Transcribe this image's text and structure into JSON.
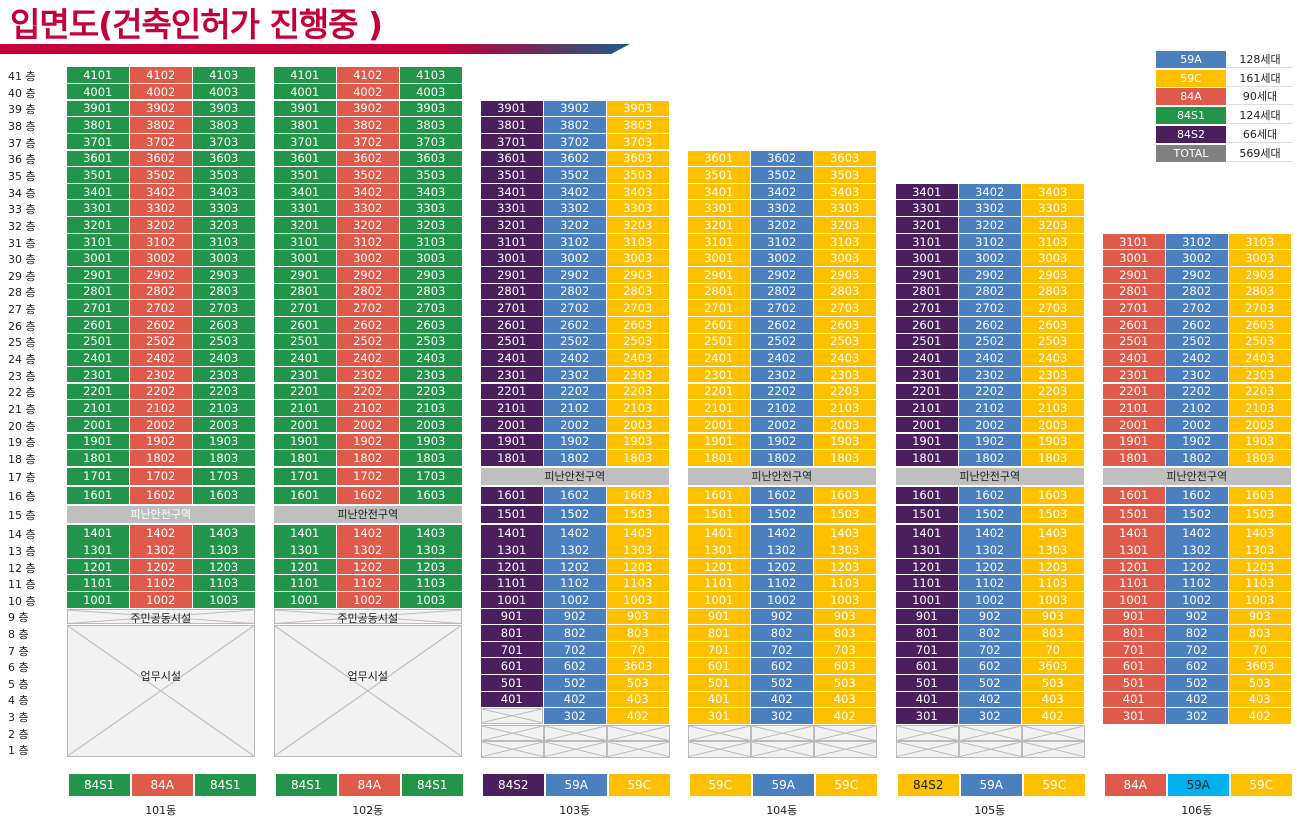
{
  "title": "입면도(건축인허가 진행중 )",
  "colors": {
    "green": "#23954a",
    "red": "#e05a4b",
    "blue": "#4a7fc0",
    "yellow": "#ffc000",
    "purple": "#4b1f5e",
    "grey": "#808080",
    "cyan": "#00b0f0"
  },
  "floor_suffix": " 층",
  "legend": [
    {
      "type": "59A",
      "count": "128세대",
      "color": "blue"
    },
    {
      "type": "59C",
      "count": "161세대",
      "color": "yellow"
    },
    {
      "type": "84A",
      "count": "90세대",
      "color": "red"
    },
    {
      "type": "84S1",
      "count": "124세대",
      "color": "green"
    },
    {
      "type": "84S2",
      "count": "66세대",
      "color": "purple"
    },
    {
      "type": "TOTAL",
      "count": "569세대",
      "color": "grey"
    }
  ],
  "buildings": [
    {
      "name": "101동",
      "col_colors": [
        "green",
        "red",
        "green"
      ],
      "refuge_floor": 15,
      "refuge_label": "피난안전구역",
      "refuge_text_color": "#fff",
      "amenity_label": "주민공동시설",
      "office_label": "업무시설",
      "footer": [
        {
          "type": "84S1",
          "color": "green"
        },
        {
          "type": "84A",
          "color": "red"
        },
        {
          "type": "84S1",
          "color": "green"
        }
      ],
      "units": {
        "41": [
          "4101",
          "4102",
          "4103"
        ],
        "40": [
          "4001",
          "4002",
          "4003"
        ],
        "39": [
          "3901",
          "3902",
          "3903"
        ],
        "38": [
          "3801",
          "3802",
          "3803"
        ],
        "37": [
          "3701",
          "3702",
          "3703"
        ],
        "36": [
          "3601",
          "3602",
          "3603"
        ],
        "35": [
          "3501",
          "3502",
          "3503"
        ],
        "34": [
          "3401",
          "3402",
          "3403"
        ],
        "33": [
          "3301",
          "3302",
          "3303"
        ],
        "32": [
          "3201",
          "3202",
          "3203"
        ],
        "31": [
          "3101",
          "3102",
          "3103"
        ],
        "30": [
          "3001",
          "3002",
          "3003"
        ],
        "29": [
          "2901",
          "2902",
          "2903"
        ],
        "28": [
          "2801",
          "2802",
          "2803"
        ],
        "27": [
          "2701",
          "2702",
          "2703"
        ],
        "26": [
          "2601",
          "2602",
          "2603"
        ],
        "25": [
          "2501",
          "2502",
          "2503"
        ],
        "24": [
          "2401",
          "2402",
          "2403"
        ],
        "23": [
          "2301",
          "2302",
          "2303"
        ],
        "22": [
          "2201",
          "2202",
          "2203"
        ],
        "21": [
          "2101",
          "2102",
          "2103"
        ],
        "20": [
          "2001",
          "2002",
          "2003"
        ],
        "19": [
          "1901",
          "1902",
          "1903"
        ],
        "18": [
          "1801",
          "1802",
          "1803"
        ],
        "17": [
          "1701",
          "1702",
          "1703"
        ],
        "16": [
          "1601",
          "1602",
          "1603"
        ],
        "14": [
          "1401",
          "1402",
          "1403"
        ],
        "13": [
          "1301",
          "1302",
          "1303"
        ],
        "12": [
          "1201",
          "1202",
          "1203"
        ],
        "11": [
          "1101",
          "1102",
          "1103"
        ],
        "10": [
          "1001",
          "1002",
          "1003"
        ]
      }
    },
    {
      "name": "102동",
      "col_colors": [
        "green",
        "red",
        "green"
      ],
      "refuge_floor": 15,
      "refuge_label": "피난안전구역",
      "refuge_text_color": "#222",
      "amenity_label": "주민공동시설",
      "office_label": "업무시설",
      "footer": [
        {
          "type": "84S1",
          "color": "green"
        },
        {
          "type": "84A",
          "color": "red"
        },
        {
          "type": "84S1",
          "color": "green"
        }
      ],
      "units": {
        "41": [
          "4101",
          "4102",
          "4103"
        ],
        "40": [
          "4001",
          "4002",
          "4003"
        ],
        "39": [
          "3901",
          "3902",
          "3903"
        ],
        "38": [
          "3801",
          "3802",
          "3803"
        ],
        "37": [
          "3701",
          "3702",
          "3703"
        ],
        "36": [
          "3601",
          "3602",
          "3603"
        ],
        "35": [
          "3501",
          "3502",
          "3503"
        ],
        "34": [
          "3401",
          "3402",
          "3403"
        ],
        "33": [
          "3301",
          "3302",
          "3303"
        ],
        "32": [
          "3201",
          "3202",
          "3203"
        ],
        "31": [
          "3101",
          "3102",
          "3103"
        ],
        "30": [
          "3001",
          "3002",
          "3003"
        ],
        "29": [
          "2901",
          "2902",
          "2903"
        ],
        "28": [
          "2801",
          "2802",
          "2803"
        ],
        "27": [
          "2701",
          "2702",
          "2703"
        ],
        "26": [
          "2601",
          "2602",
          "2603"
        ],
        "25": [
          "2501",
          "2502",
          "2503"
        ],
        "24": [
          "2401",
          "2402",
          "2403"
        ],
        "23": [
          "2301",
          "2302",
          "2303"
        ],
        "22": [
          "2201",
          "2202",
          "2203"
        ],
        "21": [
          "2101",
          "2102",
          "2103"
        ],
        "20": [
          "2001",
          "2002",
          "2003"
        ],
        "19": [
          "1901",
          "1902",
          "1903"
        ],
        "18": [
          "1801",
          "1802",
          "1803"
        ],
        "17": [
          "1701",
          "1702",
          "1703"
        ],
        "16": [
          "1601",
          "1602",
          "1603"
        ],
        "14": [
          "1401",
          "1402",
          "1403"
        ],
        "13": [
          "1301",
          "1302",
          "1303"
        ],
        "12": [
          "1201",
          "1202",
          "1203"
        ],
        "11": [
          "1101",
          "1102",
          "1103"
        ],
        "10": [
          "1001",
          "1002",
          "1003"
        ]
      }
    },
    {
      "name": "103동",
      "col_colors": [
        "purple",
        "blue",
        "yellow"
      ],
      "refuge_floor": 17,
      "refuge_label": "피난안전구역",
      "refuge_text_color": "#222",
      "hatched_floors": [
        2,
        1
      ],
      "footer": [
        {
          "type": "84S2",
          "color": "purple"
        },
        {
          "type": "59A",
          "color": "blue"
        },
        {
          "type": "59C",
          "color": "yellow"
        }
      ],
      "units": {
        "39": [
          "3901",
          "3902",
          "3903"
        ],
        "38": [
          "3801",
          "3802",
          "3803"
        ],
        "37": [
          "3701",
          "3702",
          "3703"
        ],
        "36": [
          "3601",
          "3602",
          "3603"
        ],
        "35": [
          "3501",
          "3502",
          "3503"
        ],
        "34": [
          "3401",
          "3402",
          "3403"
        ],
        "33": [
          "3301",
          "3302",
          "3303"
        ],
        "32": [
          "3201",
          "3202",
          "3203"
        ],
        "31": [
          "3101",
          "3102",
          "3103"
        ],
        "30": [
          "3001",
          "3002",
          "3003"
        ],
        "29": [
          "2901",
          "2902",
          "2903"
        ],
        "28": [
          "2801",
          "2802",
          "2803"
        ],
        "27": [
          "2701",
          "2702",
          "2703"
        ],
        "26": [
          "2601",
          "2602",
          "2603"
        ],
        "25": [
          "2501",
          "2502",
          "2503"
        ],
        "24": [
          "2401",
          "2402",
          "2403"
        ],
        "23": [
          "2301",
          "2302",
          "2303"
        ],
        "22": [
          "2201",
          "2202",
          "2203"
        ],
        "21": [
          "2101",
          "2102",
          "2103"
        ],
        "20": [
          "2001",
          "2002",
          "2003"
        ],
        "19": [
          "1901",
          "1902",
          "1903"
        ],
        "18": [
          "1801",
          "1802",
          "1803"
        ],
        "16": [
          "1601",
          "1602",
          "1603"
        ],
        "15": [
          "1501",
          "1502",
          "1503"
        ],
        "14": [
          "1401",
          "1402",
          "1403"
        ],
        "13": [
          "1301",
          "1302",
          "1303"
        ],
        "12": [
          "1201",
          "1202",
          "1203"
        ],
        "11": [
          "1101",
          "1102",
          "1103"
        ],
        "10": [
          "1001",
          "1002",
          "1003"
        ],
        "9": [
          "901",
          "902",
          "903"
        ],
        "8": [
          "801",
          "802",
          "803"
        ],
        "7": [
          "701",
          "702",
          "70"
        ],
        "6": [
          "601",
          "602",
          "3603"
        ],
        "5": [
          "501",
          "502",
          "503"
        ],
        "4": [
          "401",
          "402",
          "403"
        ],
        "3": [
          null,
          "302",
          "402"
        ]
      }
    },
    {
      "name": "104동",
      "col_colors": [
        "yellow",
        "blue",
        "yellow"
      ],
      "refuge_floor": 17,
      "refuge_label": "피난안전구역",
      "refuge_text_color": "#222",
      "hatched_floors": [
        2,
        1
      ],
      "footer": [
        {
          "type": "59C",
          "color": "yellow"
        },
        {
          "type": "59A",
          "color": "blue"
        },
        {
          "type": "59C",
          "color": "yellow"
        }
      ],
      "units": {
        "36": [
          "3601",
          "3602",
          "3603"
        ],
        "35": [
          "3501",
          "3502",
          "3503"
        ],
        "34": [
          "3401",
          "3402",
          "3403"
        ],
        "33": [
          "3301",
          "3302",
          "3303"
        ],
        "32": [
          "3201",
          "3202",
          "3203"
        ],
        "31": [
          "3101",
          "3102",
          "3103"
        ],
        "30": [
          "3001",
          "3002",
          "3003"
        ],
        "29": [
          "2901",
          "2902",
          "2903"
        ],
        "28": [
          "2801",
          "2802",
          "2803"
        ],
        "27": [
          "2701",
          "2702",
          "2703"
        ],
        "26": [
          "2601",
          "2602",
          "2603"
        ],
        "25": [
          "2501",
          "2502",
          "2503"
        ],
        "24": [
          "2401",
          "2402",
          "2403"
        ],
        "23": [
          "2301",
          "2302",
          "2303"
        ],
        "22": [
          "2201",
          "2202",
          "2203"
        ],
        "21": [
          "2101",
          "2102",
          "2103"
        ],
        "20": [
          "2001",
          "2002",
          "2003"
        ],
        "19": [
          "1901",
          "1902",
          "1903"
        ],
        "18": [
          "1801",
          "1802",
          "1803"
        ],
        "16": [
          "1601",
          "1602",
          "1603"
        ],
        "15": [
          "1501",
          "1502",
          "1503"
        ],
        "14": [
          "1401",
          "1402",
          "1403"
        ],
        "13": [
          "1301",
          "1302",
          "1303"
        ],
        "12": [
          "1201",
          "1202",
          "1203"
        ],
        "11": [
          "1101",
          "1102",
          "1103"
        ],
        "10": [
          "1001",
          "1002",
          "1003"
        ],
        "9": [
          "901",
          "902",
          "903"
        ],
        "8": [
          "801",
          "802",
          "803"
        ],
        "7": [
          "701",
          "702",
          "703"
        ],
        "6": [
          "601",
          "602",
          "603"
        ],
        "5": [
          "501",
          "502",
          "503"
        ],
        "4": [
          "401",
          "402",
          "403"
        ],
        "3": [
          "301",
          "302",
          "402"
        ]
      }
    },
    {
      "name": "105동",
      "col_colors": [
        "purple",
        "blue",
        "yellow"
      ],
      "refuge_floor": 17,
      "refuge_label": "피난안전구역",
      "refuge_text_color": "#222",
      "hatched_floors": [
        2,
        1
      ],
      "footer": [
        {
          "type": "84S2",
          "color": "yellow",
          "text_color": "#222"
        },
        {
          "type": "59A",
          "color": "blue"
        },
        {
          "type": "59C",
          "color": "yellow"
        }
      ],
      "units": {
        "34": [
          "3401",
          "3402",
          "3403"
        ],
        "33": [
          "3301",
          "3302",
          "3303"
        ],
        "32": [
          "3201",
          "3202",
          "3203"
        ],
        "31": [
          "3101",
          "3102",
          "3103"
        ],
        "30": [
          "3001",
          "3002",
          "3003"
        ],
        "29": [
          "2901",
          "2902",
          "2903"
        ],
        "28": [
          "2801",
          "2802",
          "2803"
        ],
        "27": [
          "2701",
          "2702",
          "2703"
        ],
        "26": [
          "2601",
          "2602",
          "2603"
        ],
        "25": [
          "2501",
          "2502",
          "2503"
        ],
        "24": [
          "2401",
          "2402",
          "2403"
        ],
        "23": [
          "2301",
          "2302",
          "2303"
        ],
        "22": [
          "2201",
          "2202",
          "2203"
        ],
        "21": [
          "2101",
          "2102",
          "2103"
        ],
        "20": [
          "2001",
          "2002",
          "2003"
        ],
        "19": [
          "1901",
          "1902",
          "1903"
        ],
        "18": [
          "1801",
          "1802",
          "1803"
        ],
        "16": [
          "1601",
          "1602",
          "1603"
        ],
        "15": [
          "1501",
          "1502",
          "1503"
        ],
        "14": [
          "1401",
          "1402",
          "1403"
        ],
        "13": [
          "1301",
          "1302",
          "1303"
        ],
        "12": [
          "1201",
          "1202",
          "1203"
        ],
        "11": [
          "1101",
          "1102",
          "1103"
        ],
        "10": [
          "1001",
          "1002",
          "1003"
        ],
        "9": [
          "901",
          "902",
          "903"
        ],
        "8": [
          "801",
          "802",
          "803"
        ],
        "7": [
          "701",
          "702",
          "70"
        ],
        "6": [
          "601",
          "602",
          "3603"
        ],
        "5": [
          "501",
          "502",
          "503"
        ],
        "4": [
          "401",
          "402",
          "403"
        ],
        "3": [
          "301",
          "302",
          "402"
        ]
      }
    },
    {
      "name": "106동",
      "col_colors": [
        "red",
        "blue",
        "yellow"
      ],
      "refuge_floor": 17,
      "refuge_label": "피난안전구역",
      "refuge_text_color": "#222",
      "hatched_floors": [],
      "footer": [
        {
          "type": "84A",
          "color": "red"
        },
        {
          "type": "59A",
          "color": "cyan",
          "text_color": "#222"
        },
        {
          "type": "59C",
          "color": "yellow"
        }
      ],
      "units": {
        "31": [
          "3101",
          "3102",
          "3103"
        ],
        "30": [
          "3001",
          "3002",
          "3003"
        ],
        "29": [
          "2901",
          "2902",
          "2903"
        ],
        "28": [
          "2801",
          "2802",
          "2803"
        ],
        "27": [
          "2701",
          "2702",
          "2703"
        ],
        "26": [
          "2601",
          "2602",
          "2603"
        ],
        "25": [
          "2501",
          "2502",
          "2503"
        ],
        "24": [
          "2401",
          "2402",
          "2403"
        ],
        "23": [
          "2301",
          "2302",
          "2303"
        ],
        "22": [
          "2201",
          "2202",
          "2203"
        ],
        "21": [
          "2101",
          "2102",
          "2103"
        ],
        "20": [
          "2001",
          "2002",
          "2003"
        ],
        "19": [
          "1901",
          "1902",
          "1903"
        ],
        "18": [
          "1801",
          "1802",
          "1803"
        ],
        "16": [
          "1601",
          "1602",
          "1603"
        ],
        "15": [
          "1501",
          "1502",
          "1503"
        ],
        "14": [
          "1401",
          "1402",
          "1403"
        ],
        "13": [
          "1301",
          "1302",
          "1303"
        ],
        "12": [
          "1201",
          "1202",
          "1203"
        ],
        "11": [
          "1101",
          "1102",
          "1103"
        ],
        "10": [
          "1001",
          "1002",
          "1003"
        ],
        "9": [
          "901",
          "902",
          "903"
        ],
        "8": [
          "801",
          "802",
          "803"
        ],
        "7": [
          "701",
          "702",
          "70"
        ],
        "6": [
          "601",
          "602",
          "3603"
        ],
        "5": [
          "501",
          "502",
          "503"
        ],
        "4": [
          "401",
          "402",
          "403"
        ],
        "3": [
          "301",
          "302",
          "402"
        ]
      }
    }
  ]
}
